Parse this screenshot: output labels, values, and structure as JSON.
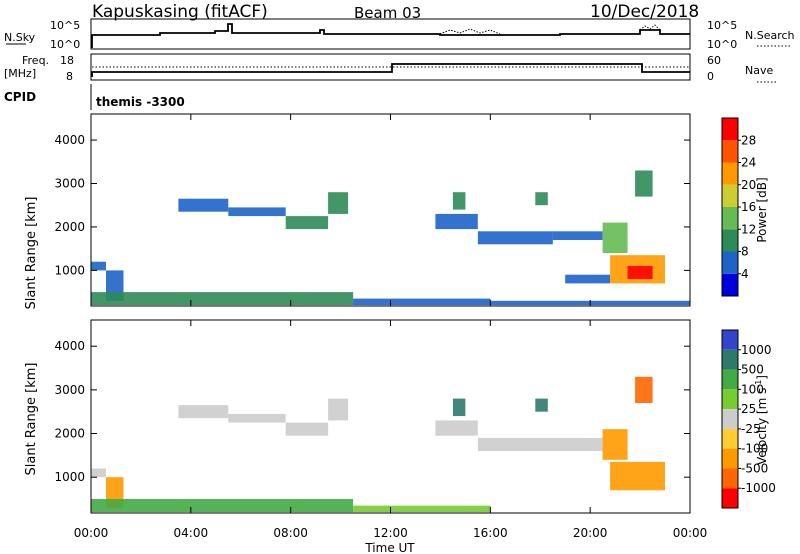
{
  "header": {
    "station": "Kapuskasing (fitACF)",
    "beam": "Beam 03",
    "date": "10/Dec/2018"
  },
  "summary_panels": {
    "nsky": {
      "label": "N.Sky",
      "ticks": [
        "10^5",
        "10^0"
      ]
    },
    "nsearch": {
      "label": "N.Search",
      "ticks": [
        "10^5",
        "10^0"
      ]
    },
    "freq": {
      "label_line1": "Freq.",
      "label_line2": "[MHz]",
      "ticks": [
        "18",
        "8"
      ]
    },
    "nave": {
      "label": "Nave",
      "ticks": [
        "60",
        "0"
      ]
    },
    "cpid": {
      "label": "CPID",
      "value": "themis -3300"
    }
  },
  "colors": {
    "power": [
      "#0000dd",
      "#1e64c8",
      "#2e8b57",
      "#66bb55",
      "#cccc33",
      "#ff9900",
      "#ff5500",
      "#ff0000"
    ],
    "velocity": [
      "#3344cc",
      "#2e7a6a",
      "#44aa44",
      "#77cc33",
      "#cccccc",
      "#ffcc33",
      "#ff9900",
      "#ff6600",
      "#ff0000"
    ]
  },
  "chart_data": [
    {
      "type": "heatmap",
      "title": "",
      "xlabel": "Time UT",
      "ylabel": "Slant Range [km]",
      "x_ticks": [
        "00:00",
        "04:00",
        "08:00",
        "12:00",
        "16:00",
        "20:00",
        "00:00"
      ],
      "y_ticks": [
        "1000",
        "2000",
        "3000",
        "4000"
      ],
      "xlim_hours": [
        0,
        24
      ],
      "ylim_km": [
        180,
        4600
      ],
      "colorbar": {
        "label": "Power [dB]",
        "tick_labels": [
          "4",
          "8",
          "12",
          "16",
          "20",
          "24",
          "28"
        ],
        "range": [
          0,
          32
        ]
      },
      "regions": [
        {
          "t0": 0.0,
          "t1": 0.6,
          "r0": 1000,
          "r1": 1200,
          "value": 6
        },
        {
          "t0": 0.6,
          "t1": 1.3,
          "r0": 300,
          "r1": 1000,
          "value": 5
        },
        {
          "t0": 0.0,
          "t1": 10.5,
          "r0": 200,
          "r1": 500,
          "value": 8
        },
        {
          "t0": 10.5,
          "t1": 16.0,
          "r0": 200,
          "r1": 350,
          "value": 6
        },
        {
          "t0": 16.0,
          "t1": 24.0,
          "r0": 200,
          "r1": 300,
          "value": 5
        },
        {
          "t0": 3.5,
          "t1": 5.5,
          "r0": 2350,
          "r1": 2650,
          "value": 7
        },
        {
          "t0": 5.5,
          "t1": 7.8,
          "r0": 2250,
          "r1": 2450,
          "value": 7
        },
        {
          "t0": 7.8,
          "t1": 9.5,
          "r0": 1950,
          "r1": 2250,
          "value": 9
        },
        {
          "t0": 9.5,
          "t1": 10.3,
          "r0": 2300,
          "r1": 2800,
          "value": 9
        },
        {
          "t0": 13.8,
          "t1": 15.5,
          "r0": 1950,
          "r1": 2300,
          "value": 5
        },
        {
          "t0": 15.5,
          "t1": 18.5,
          "r0": 1600,
          "r1": 1900,
          "value": 5
        },
        {
          "t0": 18.5,
          "t1": 20.5,
          "r0": 1700,
          "r1": 1900,
          "value": 6
        },
        {
          "t0": 14.5,
          "t1": 15.0,
          "r0": 2400,
          "r1": 2800,
          "value": 10
        },
        {
          "t0": 17.8,
          "t1": 18.3,
          "r0": 2500,
          "r1": 2800,
          "value": 10
        },
        {
          "t0": 20.5,
          "t1": 21.5,
          "r0": 1400,
          "r1": 2100,
          "value": 12
        },
        {
          "t0": 21.8,
          "t1": 22.5,
          "r0": 2700,
          "r1": 3300,
          "value": 11
        },
        {
          "t0": 19.0,
          "t1": 20.8,
          "r0": 700,
          "r1": 900,
          "value": 6
        },
        {
          "t0": 20.8,
          "t1": 23.0,
          "r0": 700,
          "r1": 1350,
          "value": 22
        },
        {
          "t0": 21.5,
          "t1": 22.5,
          "r0": 800,
          "r1": 1100,
          "value": 29
        }
      ]
    },
    {
      "type": "heatmap",
      "title": "",
      "xlabel": "Time UT",
      "ylabel": "Slant Range [km]",
      "x_ticks": [
        "00:00",
        "04:00",
        "08:00",
        "12:00",
        "16:00",
        "20:00",
        "00:00"
      ],
      "y_ticks": [
        "1000",
        "2000",
        "3000",
        "4000"
      ],
      "xlim_hours": [
        0,
        24
      ],
      "ylim_km": [
        180,
        4600
      ],
      "colorbar": {
        "label_main": "Velocity [m s",
        "label_sup": "-1",
        "label_end": "]",
        "tick_labels": [
          "1000",
          "500",
          "100",
          "25",
          "-25",
          "-100",
          "-500",
          "-1000"
        ]
      },
      "regions": [
        {
          "t0": 0.0,
          "t1": 0.6,
          "r0": 1000,
          "r1": 1200,
          "value": "gs"
        },
        {
          "t0": 0.6,
          "t1": 1.3,
          "r0": 300,
          "r1": 1000,
          "value": "-100"
        },
        {
          "t0": 0.0,
          "t1": 10.5,
          "r0": 200,
          "r1": 500,
          "value": "100"
        },
        {
          "t0": 10.5,
          "t1": 16.0,
          "r0": 200,
          "r1": 350,
          "value": "25"
        },
        {
          "t0": 3.5,
          "t1": 5.5,
          "r0": 2350,
          "r1": 2650,
          "value": "gs"
        },
        {
          "t0": 5.5,
          "t1": 7.8,
          "r0": 2250,
          "r1": 2450,
          "value": "gs"
        },
        {
          "t0": 7.8,
          "t1": 9.5,
          "r0": 1950,
          "r1": 2250,
          "value": "gs"
        },
        {
          "t0": 9.5,
          "t1": 10.3,
          "r0": 2300,
          "r1": 2800,
          "value": "gs"
        },
        {
          "t0": 13.8,
          "t1": 15.5,
          "r0": 1950,
          "r1": 2300,
          "value": "gs"
        },
        {
          "t0": 15.5,
          "t1": 20.5,
          "r0": 1600,
          "r1": 1900,
          "value": "gs"
        },
        {
          "t0": 14.5,
          "t1": 15.0,
          "r0": 2400,
          "r1": 2800,
          "value": "500"
        },
        {
          "t0": 17.8,
          "t1": 18.3,
          "r0": 2500,
          "r1": 2800,
          "value": "500"
        },
        {
          "t0": 20.5,
          "t1": 21.5,
          "r0": 1400,
          "r1": 2100,
          "value": "-100"
        },
        {
          "t0": 21.8,
          "t1": 22.5,
          "r0": 2700,
          "r1": 3300,
          "value": "-500"
        },
        {
          "t0": 20.8,
          "t1": 23.0,
          "r0": 700,
          "r1": 1350,
          "value": "-100"
        }
      ]
    }
  ]
}
